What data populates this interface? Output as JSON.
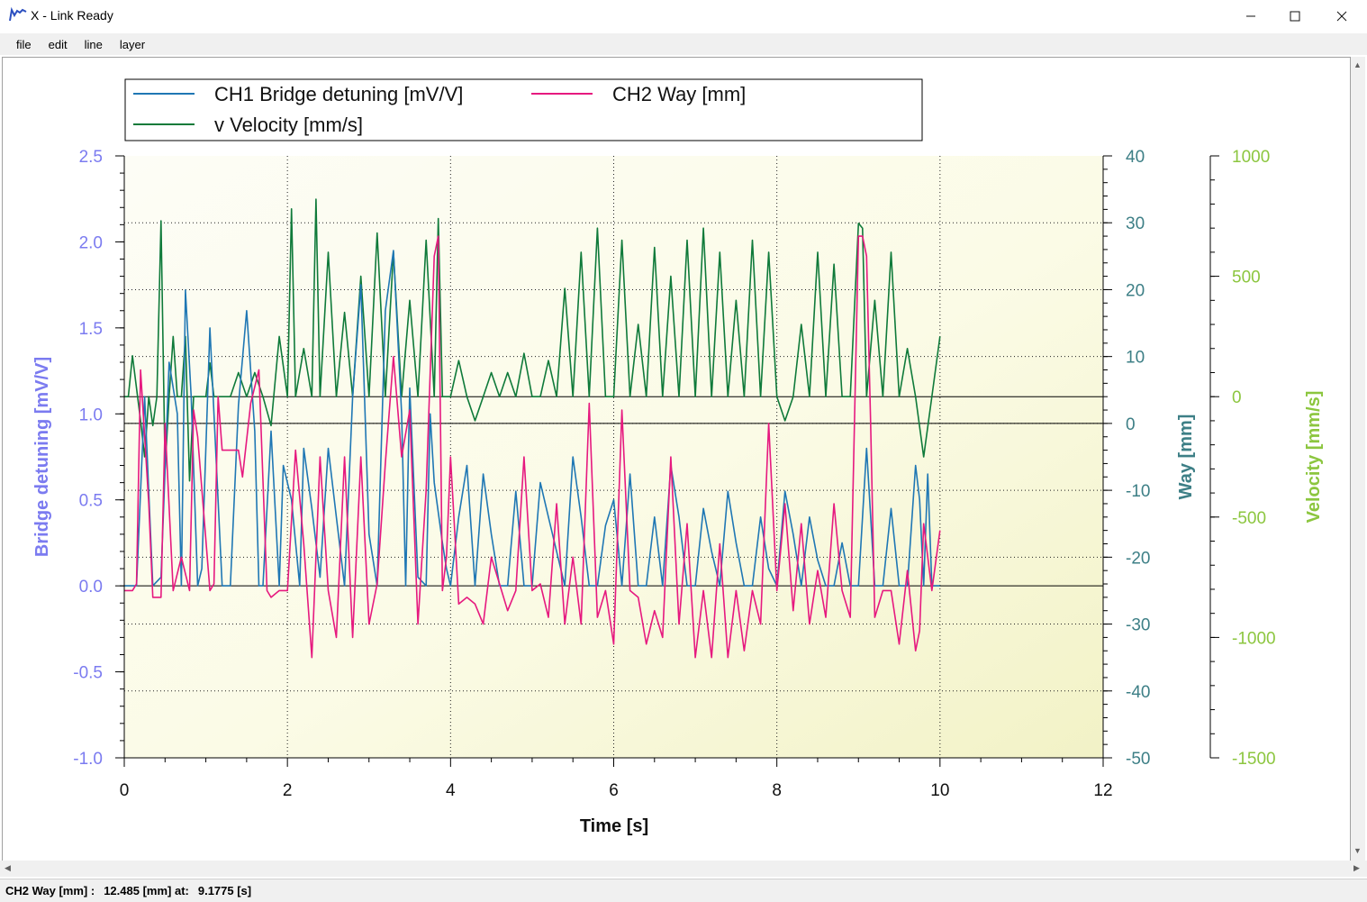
{
  "window": {
    "title": "X - Link Ready",
    "minimize_icon": "minimize-icon",
    "maximize_icon": "maximize-icon",
    "close_icon": "close-icon"
  },
  "menu": {
    "items": [
      "file",
      "edit",
      "line",
      "layer"
    ]
  },
  "status": {
    "channel": "CH2 Way [mm] :",
    "value": "12.485 [mm] at:",
    "time": "9.1775 [s]"
  },
  "colors": {
    "ch1": "#1f77b4",
    "ch2": "#e6197f",
    "velocity": "#0f7a3a",
    "left_axis": "#7b7bf0",
    "way_axis": "#3d7f86",
    "vel_axis": "#8cc63f"
  },
  "chart_data": {
    "type": "line",
    "xlabel": "Time [s]",
    "x_range": [
      0,
      12
    ],
    "x_ticks": [
      "0",
      "2",
      "4",
      "6",
      "8",
      "10",
      "12"
    ],
    "grid": true,
    "legend": "top-left",
    "axes": [
      {
        "id": "left",
        "label": "Bridge detuning [mV/V]",
        "range": [
          -1.0,
          2.5
        ],
        "ticks": [
          "2.5",
          "2.0",
          "1.5",
          "1.0",
          "0.5",
          "0.0",
          "-0.5",
          "-1.0"
        ]
      },
      {
        "id": "way",
        "label": "Way [mm]",
        "range": [
          -50,
          40
        ],
        "ticks": [
          "40",
          "30",
          "20",
          "10",
          "0",
          "-10",
          "-20",
          "-30",
          "-40",
          "-50"
        ]
      },
      {
        "id": "vel",
        "label": "Velocity [mm/s]",
        "range": [
          -1500,
          1000
        ],
        "ticks": [
          "1000",
          "500",
          "0",
          "-500",
          "-1000",
          "-1500"
        ]
      }
    ],
    "series": [
      {
        "name": "CH1 Bridge detuning [mV/V]",
        "axis": "left",
        "x": [
          0,
          0.15,
          0.25,
          0.35,
          0.45,
          0.55,
          0.65,
          0.7,
          0.75,
          0.82,
          0.9,
          0.95,
          1.05,
          1.1,
          1.2,
          1.3,
          1.4,
          1.5,
          1.6,
          1.65,
          1.7,
          1.8,
          1.9,
          1.95,
          2.05,
          2.15,
          2.2,
          2.3,
          2.4,
          2.5,
          2.6,
          2.7,
          2.8,
          2.9,
          3.0,
          3.1,
          3.2,
          3.3,
          3.4,
          3.45,
          3.5,
          3.6,
          3.7,
          3.75,
          3.8,
          3.9,
          3.95,
          4.0,
          4.1,
          4.2,
          4.3,
          4.4,
          4.5,
          4.6,
          4.7,
          4.8,
          4.9,
          5.0,
          5.1,
          5.2,
          5.3,
          5.4,
          5.5,
          5.6,
          5.7,
          5.8,
          5.9,
          6.0,
          6.1,
          6.2,
          6.3,
          6.4,
          6.5,
          6.6,
          6.7,
          6.8,
          6.9,
          7.0,
          7.1,
          7.2,
          7.3,
          7.4,
          7.5,
          7.6,
          7.7,
          7.8,
          7.9,
          8.0,
          8.1,
          8.2,
          8.3,
          8.4,
          8.5,
          8.6,
          8.7,
          8.8,
          8.9,
          9.0,
          9.1,
          9.2,
          9.3,
          9.4,
          9.5,
          9.6,
          9.7,
          9.75,
          9.8,
          9.85,
          9.9,
          10.0
        ],
        "y": [
          0.0,
          0.0,
          1.1,
          0.0,
          0.05,
          1.3,
          1.0,
          0.0,
          1.72,
          1.1,
          0.0,
          0.1,
          1.5,
          1.0,
          0.0,
          0.0,
          1.05,
          1.6,
          0.9,
          0.0,
          0.0,
          0.9,
          0.0,
          0.7,
          0.5,
          0.0,
          0.8,
          0.45,
          0.05,
          0.8,
          0.4,
          0.0,
          1.1,
          1.75,
          0.3,
          0.0,
          1.6,
          1.95,
          1.0,
          0.0,
          1.15,
          0.05,
          0.0,
          1.0,
          0.6,
          0.25,
          0.1,
          0.0,
          0.4,
          0.7,
          0.0,
          0.65,
          0.3,
          0.0,
          0.0,
          0.55,
          0.0,
          0.0,
          0.6,
          0.4,
          0.2,
          0.0,
          0.75,
          0.4,
          0.0,
          0.0,
          0.35,
          0.5,
          0.0,
          0.65,
          0.0,
          0.0,
          0.4,
          0.0,
          0.7,
          0.4,
          0.0,
          0.0,
          0.45,
          0.2,
          0.0,
          0.55,
          0.25,
          0.0,
          0.0,
          0.4,
          0.1,
          0.0,
          0.55,
          0.3,
          0.0,
          0.4,
          0.15,
          0.0,
          0.0,
          0.25,
          0.0,
          0.0,
          0.8,
          0.0,
          0.0,
          0.45,
          0.0,
          0.0,
          0.7,
          0.5,
          0.0,
          0.65,
          0.0,
          0.0
        ],
        "color_key": "ch1"
      },
      {
        "name": "CH2 Way [mm]",
        "axis": "way",
        "x": [
          0,
          0.1,
          0.15,
          0.2,
          0.3,
          0.35,
          0.45,
          0.5,
          0.6,
          0.7,
          0.8,
          0.85,
          0.9,
          1.05,
          1.1,
          1.15,
          1.2,
          1.4,
          1.45,
          1.55,
          1.65,
          1.75,
          1.8,
          1.9,
          2.0,
          2.1,
          2.2,
          2.3,
          2.4,
          2.5,
          2.6,
          2.7,
          2.8,
          2.9,
          3.0,
          3.1,
          3.2,
          3.3,
          3.4,
          3.5,
          3.6,
          3.7,
          3.8,
          3.85,
          3.9,
          3.95,
          4.0,
          4.1,
          4.2,
          4.3,
          4.4,
          4.5,
          4.6,
          4.7,
          4.8,
          4.9,
          5.0,
          5.1,
          5.2,
          5.3,
          5.4,
          5.5,
          5.6,
          5.7,
          5.8,
          5.9,
          6.0,
          6.1,
          6.2,
          6.3,
          6.4,
          6.5,
          6.6,
          6.7,
          6.8,
          6.9,
          7.0,
          7.1,
          7.2,
          7.3,
          7.4,
          7.5,
          7.6,
          7.7,
          7.8,
          7.9,
          8.0,
          8.1,
          8.2,
          8.3,
          8.4,
          8.5,
          8.6,
          8.7,
          8.8,
          8.9,
          9.0,
          9.05,
          9.1,
          9.15,
          9.2,
          9.3,
          9.4,
          9.5,
          9.6,
          9.7,
          9.75,
          9.8,
          9.9,
          10.0
        ],
        "y": [
          -25,
          -25,
          -24,
          8,
          -12,
          -26,
          -26,
          0,
          -25,
          -20,
          -25,
          2,
          -2,
          -25,
          -24,
          4,
          -4,
          -4,
          -8,
          3,
          8,
          -25,
          -26,
          -25,
          -25,
          -4,
          -18,
          -35,
          -5,
          -25,
          -32,
          -5,
          -32,
          -5,
          -30,
          -24,
          -6,
          10,
          -5,
          2,
          -30,
          -10,
          25,
          28,
          -25,
          -20,
          -5,
          -27,
          -26,
          -27,
          -30,
          -20,
          -24,
          -28,
          -25,
          -5,
          -25,
          -24,
          -29,
          -12,
          -30,
          -20,
          -30,
          3,
          -29,
          -25,
          -33,
          2,
          -25,
          -26,
          -33,
          -28,
          -32,
          -5,
          -30,
          -15,
          -35,
          -25,
          -35,
          -18,
          -35,
          -25,
          -34,
          -25,
          -30,
          0,
          -25,
          -12,
          -28,
          -15,
          -30,
          -22,
          -29,
          -12,
          -25,
          -29,
          28,
          28,
          25,
          0,
          -29,
          -25,
          -25,
          -33,
          -22,
          -34,
          -31,
          -15,
          -25,
          -16
        ],
        "color_key": "ch2"
      },
      {
        "name": "v Velocity [mm/s]",
        "axis": "vel",
        "x": [
          0,
          0.05,
          0.1,
          0.2,
          0.25,
          0.3,
          0.35,
          0.4,
          0.45,
          0.5,
          0.55,
          0.6,
          0.65,
          0.7,
          0.75,
          0.8,
          0.85,
          0.9,
          1.0,
          1.05,
          1.1,
          1.2,
          1.3,
          1.4,
          1.5,
          1.6,
          1.7,
          1.8,
          1.9,
          2.0,
          2.05,
          2.1,
          2.2,
          2.3,
          2.35,
          2.4,
          2.5,
          2.6,
          2.7,
          2.8,
          2.9,
          3.0,
          3.1,
          3.2,
          3.3,
          3.4,
          3.5,
          3.6,
          3.7,
          3.8,
          3.85,
          3.9,
          4.0,
          4.1,
          4.2,
          4.3,
          4.4,
          4.5,
          4.6,
          4.7,
          4.8,
          4.9,
          5.0,
          5.1,
          5.2,
          5.3,
          5.4,
          5.5,
          5.6,
          5.7,
          5.8,
          5.9,
          6.0,
          6.1,
          6.2,
          6.3,
          6.4,
          6.5,
          6.6,
          6.7,
          6.8,
          6.9,
          7.0,
          7.1,
          7.2,
          7.3,
          7.4,
          7.5,
          7.6,
          7.7,
          7.8,
          7.9,
          8.0,
          8.1,
          8.2,
          8.3,
          8.4,
          8.5,
          8.6,
          8.7,
          8.8,
          8.9,
          9.0,
          9.05,
          9.1,
          9.2,
          9.3,
          9.4,
          9.5,
          9.6,
          9.7,
          9.8,
          9.9,
          10.0
        ],
        "y": [
          0,
          0,
          170,
          -100,
          -250,
          0,
          -120,
          0,
          730,
          -300,
          0,
          250,
          0,
          0,
          250,
          -350,
          0,
          0,
          0,
          140,
          0,
          0,
          0,
          100,
          0,
          100,
          0,
          -120,
          250,
          0,
          780,
          0,
          200,
          0,
          820,
          0,
          600,
          0,
          350,
          0,
          500,
          0,
          680,
          0,
          600,
          0,
          400,
          0,
          650,
          0,
          740,
          0,
          0,
          150,
          0,
          -100,
          0,
          100,
          0,
          100,
          0,
          180,
          0,
          0,
          150,
          0,
          450,
          0,
          600,
          0,
          700,
          0,
          0,
          650,
          0,
          300,
          0,
          620,
          0,
          500,
          0,
          650,
          0,
          700,
          0,
          600,
          0,
          400,
          0,
          650,
          0,
          600,
          0,
          -100,
          0,
          300,
          0,
          600,
          0,
          550,
          0,
          0,
          720,
          700,
          0,
          400,
          0,
          600,
          0,
          200,
          0,
          -250,
          0,
          250
        ],
        "color_key": "velocity"
      }
    ]
  }
}
